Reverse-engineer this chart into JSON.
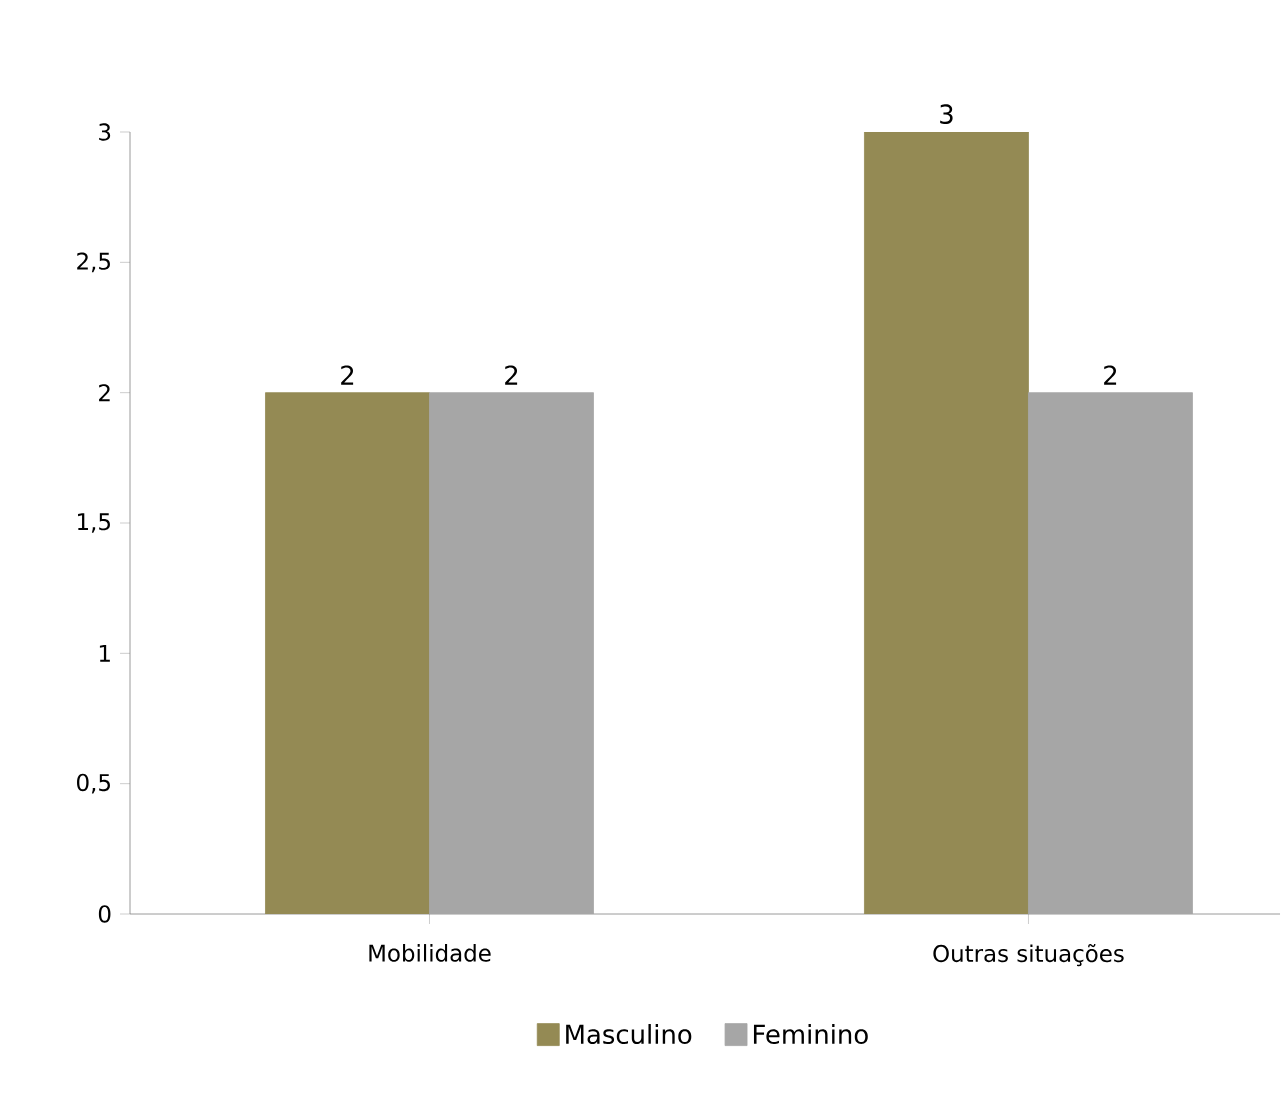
{
  "chart_data": {
    "type": "bar",
    "categories": [
      "Mobilidade",
      "Outras situações"
    ],
    "series": [
      {
        "name": "Masculino",
        "color": "#948a54",
        "values": [
          2,
          3
        ]
      },
      {
        "name": "Feminino",
        "color": "#a6a6a6",
        "values": [
          2,
          2
        ]
      }
    ],
    "ylim": [
      0,
      3
    ],
    "yticks": [
      0,
      {
        "value": 0.5,
        "label": "0,5"
      },
      1,
      {
        "value": 1.5,
        "label": "1,5"
      },
      2,
      {
        "value": 2.5,
        "label": "2,5"
      },
      3
    ],
    "data_labels": true,
    "legend": "bottom"
  }
}
